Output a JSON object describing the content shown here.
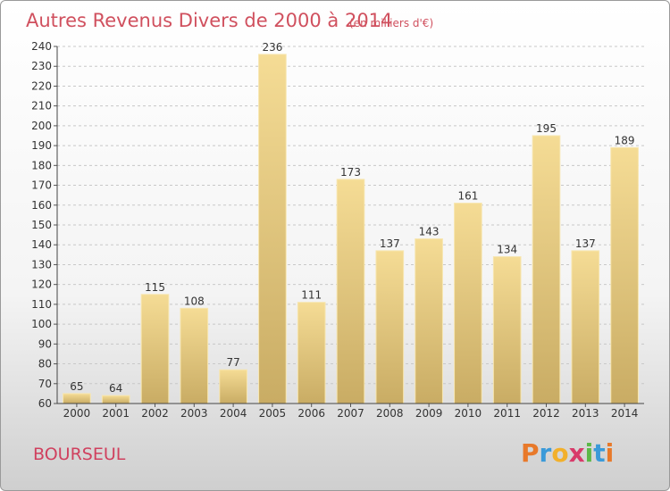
{
  "chart_data": {
    "type": "bar",
    "title": "Autres Revenus Divers de 2000 à 2014",
    "subtitle": "(en milliers d'€)",
    "categories": [
      "2000",
      "2001",
      "2002",
      "2003",
      "2004",
      "2005",
      "2006",
      "2007",
      "2008",
      "2009",
      "2010",
      "2011",
      "2012",
      "2013",
      "2014"
    ],
    "values": [
      65,
      64,
      115,
      108,
      77,
      236,
      111,
      173,
      137,
      143,
      161,
      134,
      195,
      137,
      189
    ],
    "ylim": [
      60,
      240
    ],
    "yticks": [
      60,
      70,
      80,
      90,
      100,
      110,
      120,
      130,
      140,
      150,
      160,
      170,
      180,
      190,
      200,
      210,
      220,
      230,
      240
    ],
    "grid": "horizontal dashed",
    "bar_color": "#e6cd88",
    "xlabel": "",
    "ylabel": ""
  },
  "commune": "BOURSEUL",
  "logo": {
    "letters": [
      "P",
      "r",
      "o",
      "x",
      "i",
      "t",
      "i"
    ],
    "colors": [
      "#e8792a",
      "#3a9ad9",
      "#f2b02a",
      "#d83a6a",
      "#5cb848",
      "#3a9ad9",
      "#e8792a"
    ]
  }
}
